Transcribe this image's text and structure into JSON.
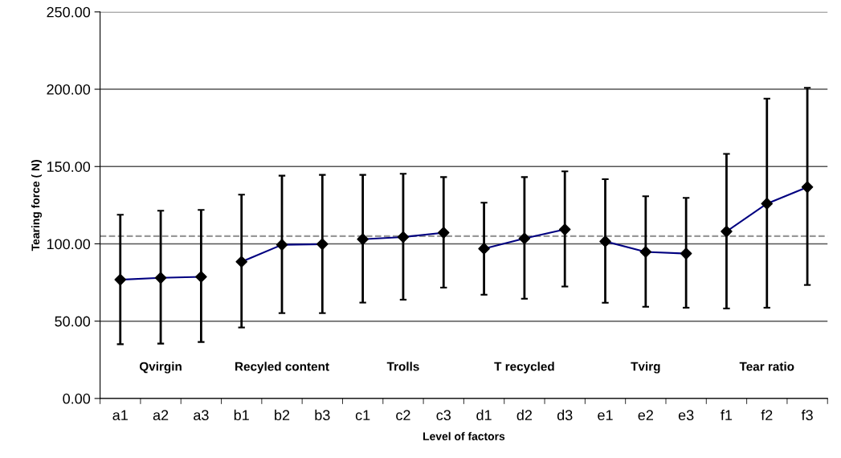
{
  "chart_data": {
    "type": "line",
    "xlabel": "Level of factors",
    "ylabel": "Tearing force ( N)",
    "categories": [
      "a1",
      "a2",
      "a3",
      "b1",
      "b2",
      "b3",
      "c1",
      "c2",
      "c3",
      "d1",
      "d2",
      "d3",
      "e1",
      "e2",
      "e3",
      "f1",
      "f2",
      "f3"
    ],
    "series": [
      {
        "color": "#000080",
        "values": [
          76.8,
          78.0,
          78.7,
          null,
          null,
          null,
          null,
          null,
          null,
          null,
          null,
          null,
          null,
          null,
          null,
          null,
          null,
          null
        ],
        "errors": [
          [
            35.1,
            118.8
          ],
          [
            35.5,
            121.4
          ],
          [
            36.5,
            121.9
          ],
          null,
          null,
          null,
          null,
          null,
          null,
          null,
          null,
          null,
          null,
          null,
          null,
          null,
          null,
          null
        ]
      },
      {
        "color": "#000080",
        "values": [
          null,
          null,
          null,
          88.4,
          99.4,
          99.8,
          null,
          null,
          null,
          null,
          null,
          null,
          null,
          null,
          null,
          null,
          null,
          null
        ],
        "errors": [
          null,
          null,
          null,
          [
            45.9,
            131.8
          ],
          [
            55.2,
            144.1
          ],
          [
            55.2,
            144.6
          ],
          null,
          null,
          null,
          null,
          null,
          null,
          null,
          null,
          null,
          null,
          null,
          null
        ]
      },
      {
        "color": "#000080",
        "values": [
          null,
          null,
          null,
          null,
          null,
          null,
          103.0,
          104.4,
          107.2,
          null,
          null,
          null,
          null,
          null,
          null,
          null,
          null,
          null
        ],
        "errors": [
          null,
          null,
          null,
          null,
          null,
          null,
          [
            62.0,
            144.6
          ],
          [
            63.9,
            145.3
          ],
          [
            71.7,
            143.2
          ],
          null,
          null,
          null,
          null,
          null,
          null,
          null,
          null,
          null
        ]
      },
      {
        "color": "#000080",
        "values": [
          null,
          null,
          null,
          null,
          null,
          null,
          null,
          null,
          null,
          96.9,
          103.5,
          109.3,
          null,
          null,
          null,
          null,
          null,
          null
        ],
        "errors": [
          null,
          null,
          null,
          null,
          null,
          null,
          null,
          null,
          null,
          [
            67.1,
            126.6
          ],
          [
            64.5,
            143.2
          ],
          [
            72.4,
            146.9
          ],
          null,
          null,
          null,
          null,
          null,
          null
        ]
      },
      {
        "color": "#000080",
        "values": [
          null,
          null,
          null,
          null,
          null,
          null,
          null,
          null,
          null,
          null,
          null,
          null,
          101.6,
          94.8,
          93.7,
          null,
          null,
          null
        ],
        "errors": [
          null,
          null,
          null,
          null,
          null,
          null,
          null,
          null,
          null,
          null,
          null,
          null,
          [
            61.9,
            141.8
          ],
          [
            59.3,
            130.8
          ],
          [
            58.7,
            129.7
          ],
          null,
          null,
          null
        ]
      },
      {
        "color": "#000080",
        "values": [
          null,
          null,
          null,
          null,
          null,
          null,
          null,
          null,
          null,
          null,
          null,
          null,
          null,
          null,
          null,
          108.0,
          126.0,
          136.7
        ],
        "errors": [
          null,
          null,
          null,
          null,
          null,
          null,
          null,
          null,
          null,
          null,
          null,
          null,
          null,
          null,
          null,
          [
            58.2,
            158.2
          ],
          [
            58.7,
            193.9
          ],
          [
            73.4,
            200.9
          ]
        ]
      }
    ],
    "annotations": [
      "Qvirgin",
      "Recyled content",
      "Trolls",
      "T recycled",
      "Tvirg",
      "Tear ratio"
    ],
    "ref_lines": [
      {
        "axis": "y",
        "value": 105,
        "color": "#999999",
        "line_style": "dashed"
      }
    ],
    "ylim": [
      0,
      250
    ],
    "yticks": [
      {
        "value": 0,
        "label": "0.00"
      },
      {
        "value": 50,
        "label": "50.00"
      },
      {
        "value": 100,
        "label": "100.00"
      },
      {
        "value": 150,
        "label": "150.00"
      },
      {
        "value": 200,
        "label": "200.00"
      },
      {
        "value": 250,
        "label": "250.00"
      }
    ],
    "grid": "y",
    "marker": "diamond",
    "line_style": "solid",
    "legend": false
  }
}
